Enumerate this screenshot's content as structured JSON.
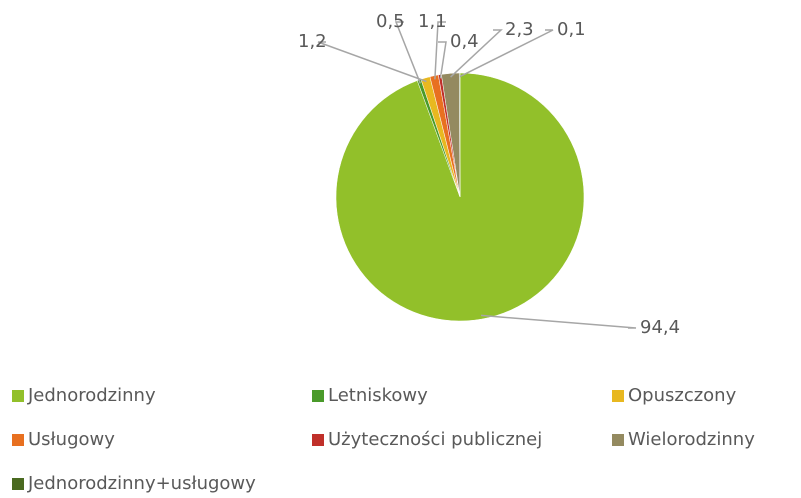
{
  "chart_data": {
    "type": "pie",
    "categories": [
      "Jednorodzinny",
      "Letniskowy",
      "Opuszczony",
      "Usługowy",
      "Użyteczności publicznej",
      "Wielorodzinny",
      "Jednorodzinny+usługowy"
    ],
    "values": [
      94.4,
      0.5,
      1.2,
      1.1,
      0.4,
      2.3,
      0.1
    ],
    "value_labels": [
      "94,4",
      "0,5",
      "1,2",
      "1,1",
      "0,4",
      "2,3",
      "0,1"
    ],
    "colors": [
      "#92c02a",
      "#4a9a2a",
      "#e8b820",
      "#e87020",
      "#c0302a",
      "#948a60",
      "#4a6a20"
    ],
    "legend": "bottom"
  }
}
